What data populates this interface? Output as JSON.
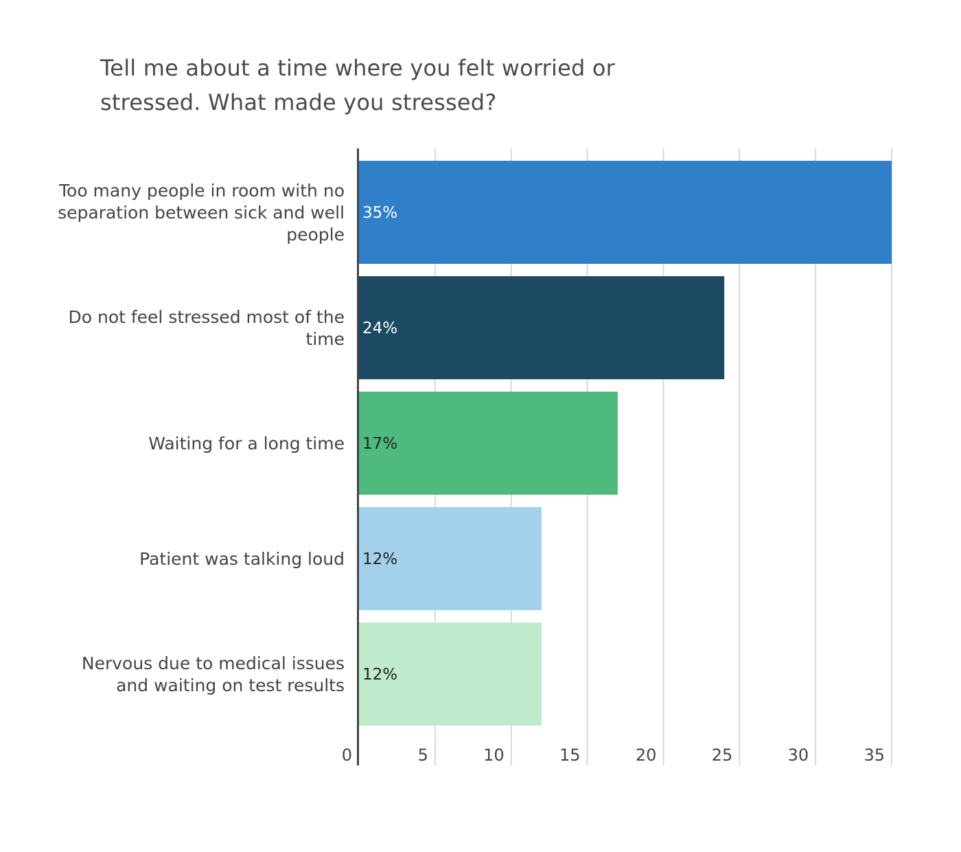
{
  "chart_data": {
    "type": "bar",
    "orientation": "horizontal",
    "title": "Tell me about a time where you felt worried or stressed. What made you stressed?",
    "categories": [
      "Too many people in room with no separation between sick and well people",
      "Do not feel stressed most of the time",
      "Waiting for a long time",
      "Patient was talking loud",
      "Nervous due to medical issues and waiting on test results"
    ],
    "values": [
      35,
      24,
      17,
      12,
      12
    ],
    "data_labels": [
      "35%",
      "24%",
      "17%",
      "12%",
      "12%"
    ],
    "bar_colors": [
      "#2f80c9",
      "#1b4a62",
      "#4fba7e",
      "#a3d1eb",
      "#bfeacb"
    ],
    "label_colors": [
      "#ffffff",
      "#ffffff",
      "#222222",
      "#222222",
      "#222222"
    ],
    "xlim": [
      0,
      35
    ],
    "xticks": [
      0,
      5,
      10,
      15,
      20,
      25,
      30,
      35
    ],
    "xlabel": "",
    "ylabel": "",
    "grid": true,
    "legend": "none"
  }
}
